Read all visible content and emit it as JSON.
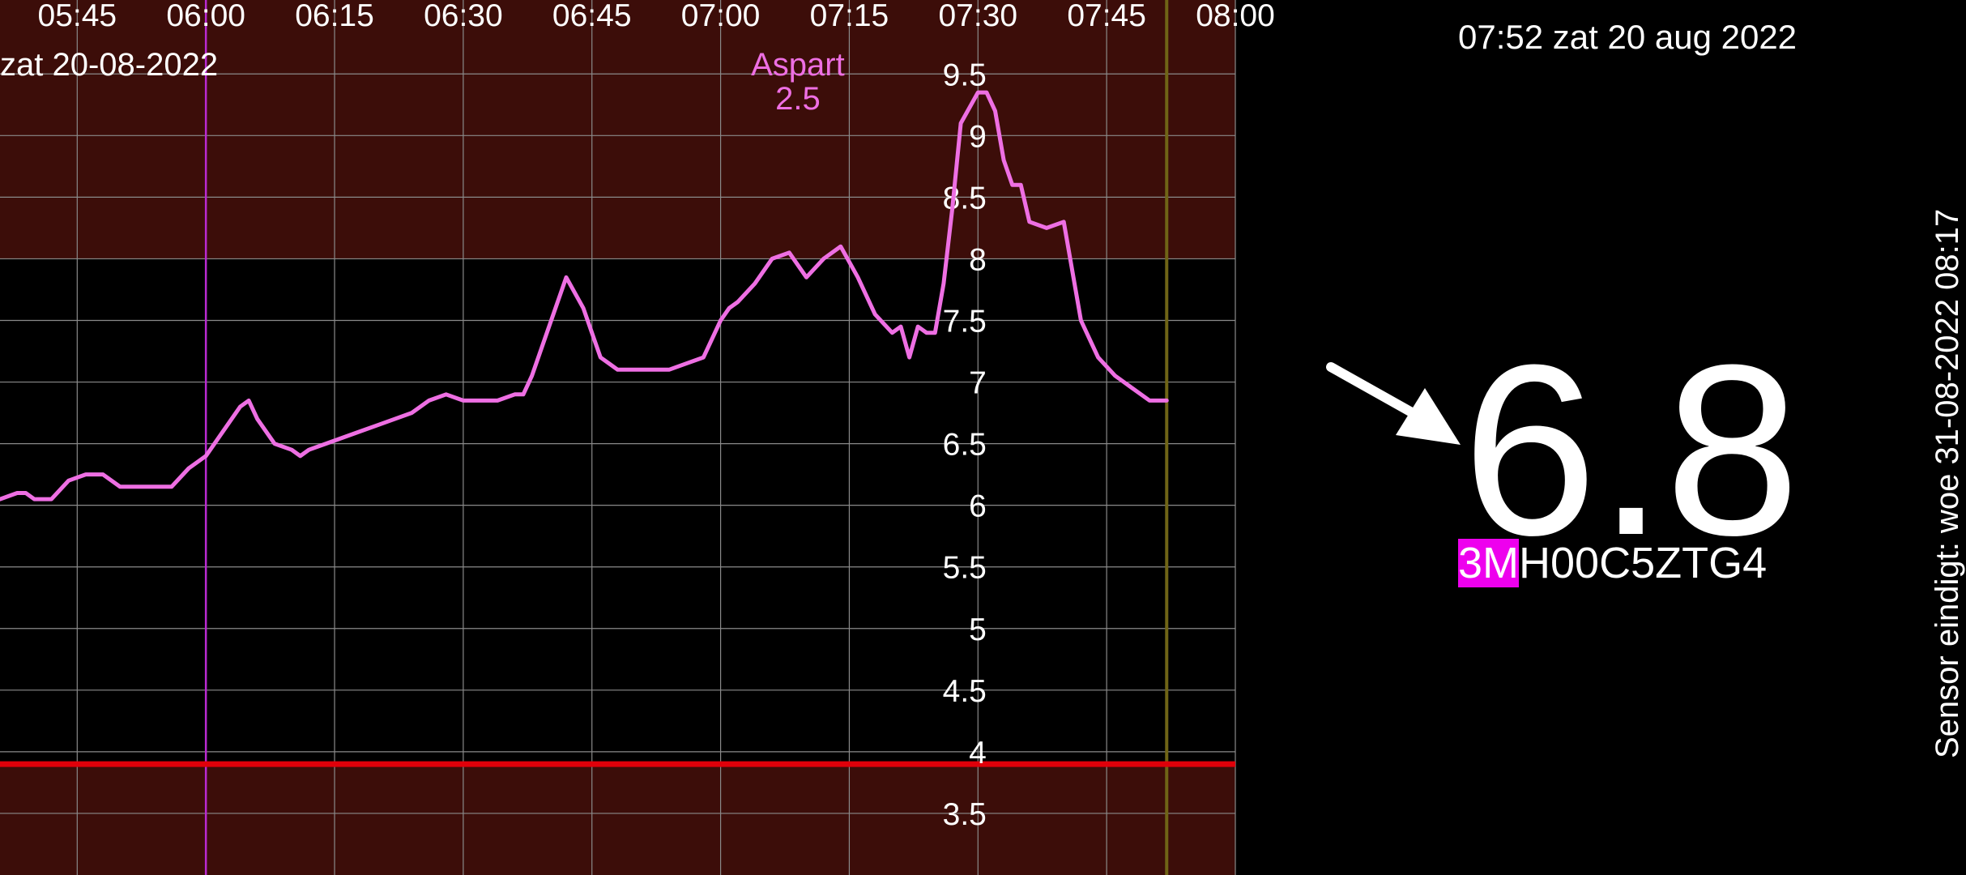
{
  "colors": {
    "high_zone": "#3c0d09",
    "normal_zone": "#000000",
    "grid": "#8a8a8a",
    "curve": "#ee6fe3",
    "low_line": "#e0000a",
    "now_line": "#6f6416",
    "insulin_line": "#b92ad0",
    "serial_highlight": "#ee00ee"
  },
  "chart_data": {
    "type": "line",
    "date_label": "zat 20-08-2022",
    "x_ticks": [
      "05:45",
      "06:00",
      "06:15",
      "06:30",
      "06:45",
      "07:00",
      "07:15",
      "07:30",
      "07:45",
      "08:00"
    ],
    "y_ticks": [
      "3.5",
      "4",
      "4.5",
      "5",
      "5.5",
      "6",
      "6.5",
      "7",
      "7.5",
      "8",
      "8.5",
      "9",
      "9.5"
    ],
    "xlim": [
      "05:36",
      "08:00"
    ],
    "ylim": [
      3.0,
      10.1
    ],
    "target_high": 8.0,
    "target_low": 3.9,
    "now_marker": "07:52",
    "grid": true,
    "insulin_event": {
      "time": "06:00",
      "label": "Aspart",
      "amount": "2.5"
    },
    "series": [
      {
        "x": [
          "05:36",
          "05:38",
          "05:39",
          "05:40",
          "05:42",
          "05:44",
          "05:46",
          "05:48",
          "05:50",
          "05:52",
          "05:54",
          "05:56",
          "05:58",
          "06:00",
          "06:02",
          "06:04",
          "06:05",
          "06:06",
          "06:08",
          "06:10",
          "06:11",
          "06:12",
          "06:14",
          "06:16",
          "06:18",
          "06:20",
          "06:22",
          "06:24",
          "06:26",
          "06:28",
          "06:30",
          "06:32",
          "06:34",
          "06:36",
          "06:37",
          "06:38",
          "06:40",
          "06:42",
          "06:44",
          "06:46",
          "06:47",
          "06:48",
          "06:50",
          "06:52",
          "06:54",
          "06:56",
          "06:58",
          "07:00",
          "07:01",
          "07:02",
          "07:04",
          "07:06",
          "07:08",
          "07:10",
          "07:12",
          "07:14",
          "07:16",
          "07:18",
          "07:20",
          "07:21",
          "07:22",
          "07:23",
          "07:24",
          "07:25",
          "07:26",
          "07:27",
          "07:28",
          "07:30",
          "07:31",
          "07:32",
          "07:33",
          "07:34",
          "07:35",
          "07:36",
          "07:38",
          "07:40",
          "07:42",
          "07:43",
          "07:44",
          "07:46",
          "07:47",
          "07:48",
          "07:50",
          "07:51",
          "07:52"
        ],
        "y": [
          6.05,
          6.1,
          6.1,
          6.05,
          6.05,
          6.2,
          6.25,
          6.25,
          6.15,
          6.15,
          6.15,
          6.15,
          6.3,
          6.4,
          6.6,
          6.8,
          6.85,
          6.7,
          6.5,
          6.45,
          6.4,
          6.45,
          6.5,
          6.55,
          6.6,
          6.65,
          6.7,
          6.75,
          6.85,
          6.9,
          6.85,
          6.85,
          6.85,
          6.9,
          6.9,
          7.05,
          7.45,
          7.85,
          7.6,
          7.2,
          7.15,
          7.1,
          7.1,
          7.1,
          7.1,
          7.15,
          7.2,
          7.5,
          7.6,
          7.65,
          7.8,
          8.0,
          8.05,
          7.85,
          8.0,
          8.1,
          7.85,
          7.55,
          7.4,
          7.45,
          7.2,
          7.45,
          7.4,
          7.4,
          7.8,
          8.4,
          9.1,
          9.35,
          9.35,
          9.2,
          8.8,
          8.6,
          8.6,
          8.3,
          8.25,
          8.3,
          7.5,
          7.35,
          7.2,
          7.05,
          7.0,
          6.95,
          6.85,
          6.85,
          6.85
        ]
      }
    ]
  },
  "status": {
    "datetime": "07:52 zat 20 aug 2022",
    "reading": "6.8",
    "trend_icon": "arrow-down-right-icon",
    "serial_highlight": "3M",
    "serial_rest": "H00C5ZTG4",
    "sensor_expiry": "Sensor eindigt: woe 31-08-2022 08:17"
  }
}
